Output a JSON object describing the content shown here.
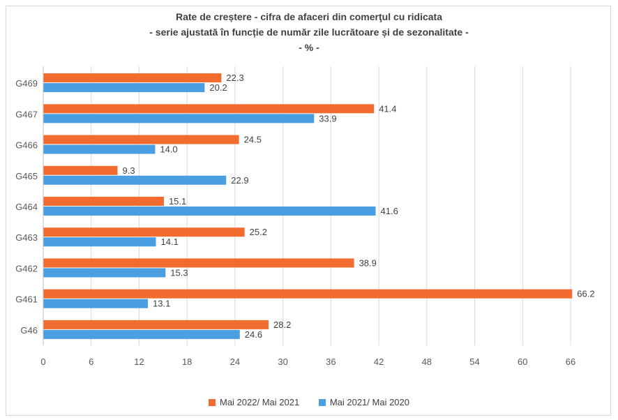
{
  "title_lines": [
    "Rate de creștere - cifra de afaceri din comerţul cu ridicata",
    "- serie ajustată în funcție de număr zile lucrătoare și de sezonalitate -",
    "- % -"
  ],
  "chart_data": {
    "type": "bar",
    "orientation": "horizontal",
    "categories": [
      "G469",
      "G467",
      "G466",
      "G465",
      "G464",
      "G463",
      "G462",
      "G461",
      "G46"
    ],
    "series": [
      {
        "name": "Mai 2022/ Mai 2021",
        "color": "#f26b2f",
        "values": [
          22.3,
          41.4,
          24.5,
          9.3,
          15.1,
          25.2,
          38.9,
          66.2,
          28.2
        ]
      },
      {
        "name": "Mai 2021/ Mai 2020",
        "color": "#4a9ee2",
        "values": [
          20.2,
          33.9,
          14.0,
          22.9,
          41.6,
          14.1,
          15.3,
          13.1,
          24.6
        ]
      }
    ],
    "xlim": [
      0,
      66
    ],
    "xticks": [
      0,
      6,
      12,
      18,
      24,
      30,
      36,
      42,
      48,
      54,
      60,
      66
    ],
    "grid": "vertical",
    "legend_position": "bottom",
    "title": "Rate de creștere - cifra de afaceri din comerţul cu ridicata",
    "subtitle": "- serie ajustată în funcție de număr zile lucrătoare și de sezonalitate -",
    "unit": "- % -"
  }
}
